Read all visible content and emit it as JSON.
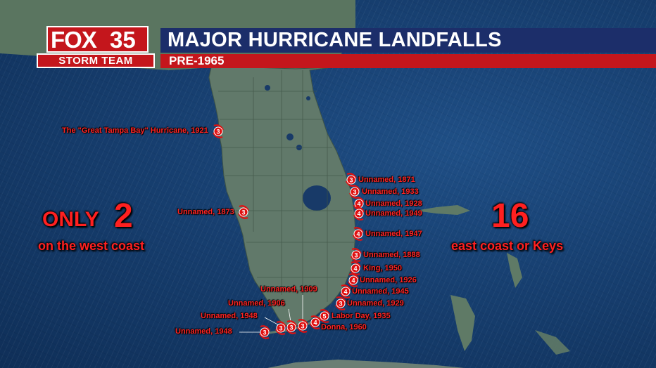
{
  "header": {
    "title": "MAJOR HURRICANE LANDFALLS",
    "subtitle": "PRE-1965"
  },
  "logo": {
    "brand": "FOX",
    "channel": "35",
    "team": "STORM TEAM"
  },
  "west_summary": {
    "prefix": "ONLY",
    "count": "2",
    "caption": "on the west coast"
  },
  "east_summary": {
    "count": "16",
    "caption": "east coast or Keys"
  },
  "colors": {
    "header_blue": "#1c2e6a",
    "header_red": "#c4161c",
    "label_red": "#ff2424",
    "land": "#5f7a63"
  },
  "landfalls": [
    {
      "name": "The \"Great Tampa Bay\" Hurricane, 1921",
      "category": "3"
    },
    {
      "name": "Unnamed, 1873",
      "category": "3"
    },
    {
      "name": "Unnamed, 1871",
      "category": "3"
    },
    {
      "name": "Unnamed, 1933",
      "category": "3"
    },
    {
      "name": "Unnamed, 1928",
      "category": "4"
    },
    {
      "name": "Unnamed, 1949",
      "category": "4"
    },
    {
      "name": "Unnamed, 1947",
      "category": "4"
    },
    {
      "name": "Unnamed, 1888",
      "category": "3"
    },
    {
      "name": "King, 1950",
      "category": "4"
    },
    {
      "name": "Unnamed, 1926",
      "category": "4"
    },
    {
      "name": "Unnamed, 1945",
      "category": "4"
    },
    {
      "name": "Unnamed, 1929",
      "category": "3"
    },
    {
      "name": "Labor Day, 1935",
      "category": "5"
    },
    {
      "name": "Donna, 1960",
      "category": "4"
    },
    {
      "name": "Unnamed, 1909",
      "category": "3"
    },
    {
      "name": "Unnamed, 1906",
      "category": "3"
    },
    {
      "name": "Unnamed, 1948",
      "category": "3"
    },
    {
      "name": "Unnamed, 1948",
      "category": "3"
    }
  ]
}
